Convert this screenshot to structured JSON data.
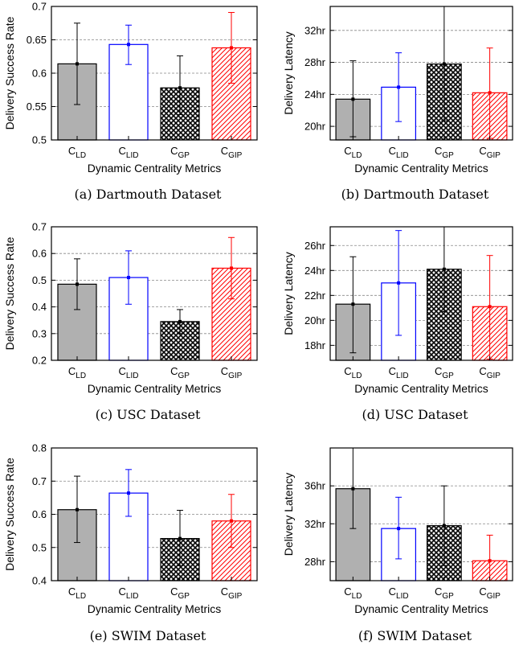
{
  "chart_data": [
    {
      "type": "bar",
      "caption": "(a) Dartmouth Dataset",
      "xlabel": "Dynamic Centrality Metrics",
      "ylabel": "Delivery Success Rate",
      "ylim": [
        0.5,
        0.7
      ],
      "yticks": [
        "0.5",
        "0.55",
        "0.6",
        "0.65",
        "0.7"
      ],
      "categories": [
        {
          "main": "C",
          "sub": "LD"
        },
        {
          "main": "C",
          "sub": "LID"
        },
        {
          "main": "C",
          "sub": "GP"
        },
        {
          "main": "C",
          "sub": "GIP"
        }
      ],
      "values": [
        0.614,
        0.643,
        0.578,
        0.638
      ],
      "error_low": [
        0.553,
        0.613,
        0.538,
        0.585
      ],
      "error_high": [
        0.675,
        0.672,
        0.626,
        0.691
      ],
      "grid": true
    },
    {
      "type": "bar",
      "caption": "(b) Dartmouth Dataset",
      "xlabel": "Dynamic Centrality Metrics",
      "ylabel": "Delivery Latency",
      "ylim": [
        18.3,
        35.0
      ],
      "yticks": [
        "20hr",
        "24hr",
        "28hr",
        "32hr"
      ],
      "ytick_values": [
        20,
        24,
        28,
        32
      ],
      "categories": [
        {
          "main": "C",
          "sub": "LD"
        },
        {
          "main": "C",
          "sub": "LID"
        },
        {
          "main": "C",
          "sub": "GP"
        },
        {
          "main": "C",
          "sub": "GIP"
        }
      ],
      "values": [
        23.4,
        24.9,
        27.8,
        24.2
      ],
      "error_low": [
        18.7,
        20.6,
        20.7,
        18.5
      ],
      "error_high": [
        28.2,
        29.2,
        35.0,
        29.8
      ],
      "grid": true
    },
    {
      "type": "bar",
      "caption": "(c) USC Dataset",
      "xlabel": "Dynamic Centrality Metrics",
      "ylabel": "Delivery Success Rate",
      "ylim": [
        0.2,
        0.7
      ],
      "yticks": [
        "0.2",
        "0.3",
        "0.4",
        "0.5",
        "0.6",
        "0.7"
      ],
      "categories": [
        {
          "main": "C",
          "sub": "LD"
        },
        {
          "main": "C",
          "sub": "LID"
        },
        {
          "main": "C",
          "sub": "GP"
        },
        {
          "main": "C",
          "sub": "GIP"
        }
      ],
      "values": [
        0.485,
        0.51,
        0.345,
        0.545
      ],
      "error_low": [
        0.39,
        0.41,
        0.3,
        0.43
      ],
      "error_high": [
        0.58,
        0.61,
        0.39,
        0.66
      ],
      "grid": true
    },
    {
      "type": "bar",
      "caption": "(d) USC Dataset",
      "xlabel": "Dynamic Centrality Metrics",
      "ylabel": "Delivery Latency",
      "ylim": [
        16.8,
        27.5
      ],
      "yticks": [
        "18hr",
        "20hr",
        "22hr",
        "24hr",
        "26hr"
      ],
      "ytick_values": [
        18,
        20,
        22,
        24,
        26
      ],
      "categories": [
        {
          "main": "C",
          "sub": "LD"
        },
        {
          "main": "C",
          "sub": "LID"
        },
        {
          "main": "C",
          "sub": "GP"
        },
        {
          "main": "C",
          "sub": "GIP"
        }
      ],
      "values": [
        21.3,
        23.0,
        24.1,
        21.1
      ],
      "error_low": [
        17.4,
        18.8,
        20.7,
        16.9
      ],
      "error_high": [
        25.1,
        27.2,
        27.5,
        25.2
      ],
      "grid": true
    },
    {
      "type": "bar",
      "caption": "(e) SWIM Dataset",
      "xlabel": "Dynamic Centrality Metrics",
      "ylabel": "Delivery Success Rate",
      "ylim": [
        0.4,
        0.8
      ],
      "yticks": [
        "0.4",
        "0.5",
        "0.6",
        "0.7",
        "0.8"
      ],
      "categories": [
        {
          "main": "C",
          "sub": "LD"
        },
        {
          "main": "C",
          "sub": "LID"
        },
        {
          "main": "C",
          "sub": "GP"
        },
        {
          "main": "C",
          "sub": "GIP"
        }
      ],
      "values": [
        0.614,
        0.664,
        0.527,
        0.58
      ],
      "error_low": [
        0.515,
        0.594,
        0.445,
        0.5
      ],
      "error_high": [
        0.715,
        0.735,
        0.612,
        0.66
      ],
      "grid": true
    },
    {
      "type": "bar",
      "caption": "(f) SWIM Dataset",
      "xlabel": "Dynamic Centrality Metrics",
      "ylabel": "Delivery Latency",
      "ylim": [
        26.0,
        40.0
      ],
      "yticks": [
        "28hr",
        "32hr",
        "36hr"
      ],
      "ytick_values": [
        28,
        32,
        36
      ],
      "categories": [
        {
          "main": "C",
          "sub": "LD"
        },
        {
          "main": "C",
          "sub": "LID"
        },
        {
          "main": "C",
          "sub": "GP"
        },
        {
          "main": "C",
          "sub": "GIP"
        }
      ],
      "values": [
        35.7,
        31.5,
        31.8,
        28.1
      ],
      "error_low": [
        31.5,
        28.3,
        27.6,
        25.7
      ],
      "error_high": [
        40.0,
        34.8,
        36.0,
        30.8
      ],
      "grid": true
    }
  ],
  "series_styles": [
    {
      "fill": "#b0b0b0",
      "stroke": "#000000",
      "pattern": "solid"
    },
    {
      "fill": "#ffffff",
      "stroke": "#0000ff",
      "pattern": "none"
    },
    {
      "fill": "#000000",
      "stroke": "#000000",
      "pattern": "crosshatch"
    },
    {
      "fill": "#ff0000",
      "stroke": "#ff0000",
      "pattern": "diagonal"
    }
  ]
}
